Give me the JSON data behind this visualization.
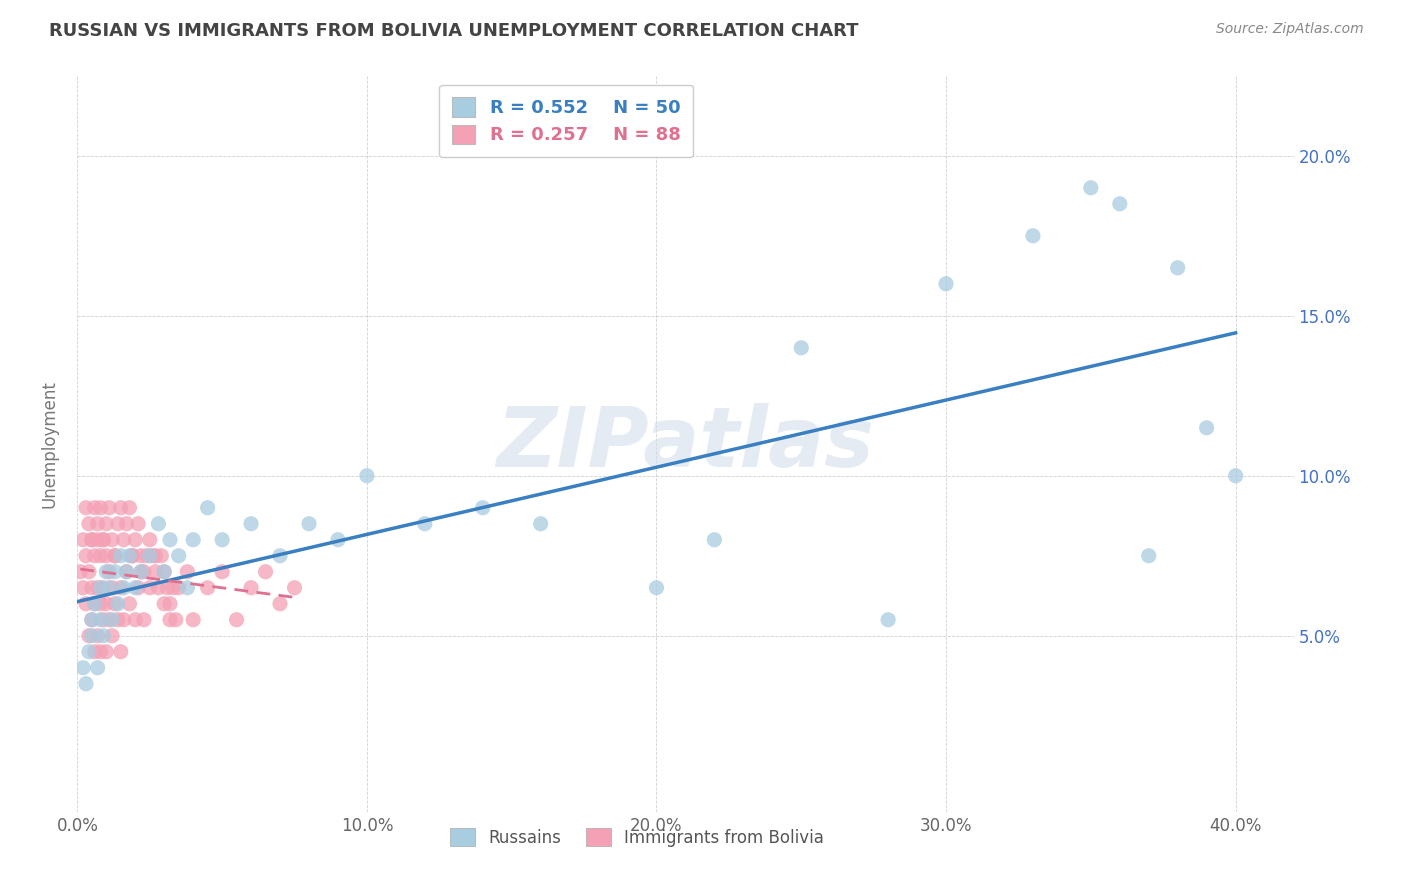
{
  "title": "RUSSIAN VS IMMIGRANTS FROM BOLIVIA UNEMPLOYMENT CORRELATION CHART",
  "source": "Source: ZipAtlas.com",
  "ylabel": "Unemployment",
  "legend_r0": "R = 0.552",
  "legend_n0": "N = 50",
  "legend_r1": "R = 0.257",
  "legend_n1": "N = 88",
  "russian_color": "#a8cce0",
  "bolivia_color": "#f4a0b5",
  "russian_line_color": "#3a7fc1",
  "bolivia_line_color": "#e07090",
  "title_color": "#444444",
  "source_color": "#888888",
  "watermark_text": "ZIPatlas",
  "xlim": [
    0.0,
    0.42
  ],
  "ylim": [
    -0.005,
    0.225
  ],
  "xtick_vals": [
    0.0,
    0.1,
    0.2,
    0.3,
    0.4
  ],
  "ytick_right_vals": [
    0.05,
    0.1,
    0.15,
    0.2
  ],
  "russians_x": [
    0.002,
    0.003,
    0.004,
    0.005,
    0.005,
    0.006,
    0.007,
    0.008,
    0.008,
    0.009,
    0.01,
    0.011,
    0.012,
    0.013,
    0.014,
    0.015,
    0.016,
    0.017,
    0.018,
    0.02,
    0.022,
    0.025,
    0.028,
    0.03,
    0.032,
    0.035,
    0.038,
    0.04,
    0.045,
    0.05,
    0.06,
    0.07,
    0.08,
    0.09,
    0.1,
    0.12,
    0.14,
    0.16,
    0.2,
    0.22,
    0.25,
    0.28,
    0.3,
    0.33,
    0.35,
    0.36,
    0.37,
    0.38,
    0.39,
    0.4
  ],
  "russians_y": [
    0.04,
    0.035,
    0.045,
    0.05,
    0.055,
    0.06,
    0.04,
    0.055,
    0.065,
    0.05,
    0.07,
    0.065,
    0.055,
    0.07,
    0.06,
    0.075,
    0.065,
    0.07,
    0.075,
    0.065,
    0.07,
    0.075,
    0.085,
    0.07,
    0.08,
    0.075,
    0.065,
    0.08,
    0.09,
    0.08,
    0.085,
    0.075,
    0.085,
    0.08,
    0.1,
    0.085,
    0.09,
    0.085,
    0.065,
    0.08,
    0.14,
    0.055,
    0.16,
    0.175,
    0.19,
    0.185,
    0.075,
    0.165,
    0.115,
    0.1
  ],
  "bolivia_x": [
    0.001,
    0.002,
    0.002,
    0.003,
    0.003,
    0.004,
    0.004,
    0.005,
    0.005,
    0.005,
    0.006,
    0.006,
    0.006,
    0.007,
    0.007,
    0.007,
    0.008,
    0.008,
    0.008,
    0.009,
    0.009,
    0.009,
    0.01,
    0.01,
    0.01,
    0.011,
    0.011,
    0.012,
    0.012,
    0.013,
    0.013,
    0.014,
    0.015,
    0.015,
    0.016,
    0.017,
    0.018,
    0.019,
    0.02,
    0.021,
    0.022,
    0.023,
    0.025,
    0.027,
    0.03,
    0.032,
    0.035,
    0.038,
    0.04,
    0.045,
    0.05,
    0.055,
    0.06,
    0.065,
    0.07,
    0.075,
    0.003,
    0.004,
    0.005,
    0.006,
    0.007,
    0.008,
    0.009,
    0.01,
    0.011,
    0.012,
    0.013,
    0.014,
    0.015,
    0.016,
    0.017,
    0.018,
    0.019,
    0.02,
    0.021,
    0.022,
    0.023,
    0.024,
    0.025,
    0.026,
    0.027,
    0.028,
    0.029,
    0.03,
    0.031,
    0.032,
    0.033,
    0.034
  ],
  "bolivia_y": [
    0.07,
    0.065,
    0.08,
    0.06,
    0.075,
    0.05,
    0.07,
    0.055,
    0.065,
    0.08,
    0.045,
    0.06,
    0.075,
    0.05,
    0.065,
    0.08,
    0.045,
    0.06,
    0.075,
    0.055,
    0.065,
    0.08,
    0.045,
    0.06,
    0.075,
    0.055,
    0.07,
    0.05,
    0.065,
    0.06,
    0.075,
    0.055,
    0.045,
    0.065,
    0.055,
    0.07,
    0.06,
    0.075,
    0.055,
    0.065,
    0.07,
    0.055,
    0.065,
    0.075,
    0.06,
    0.055,
    0.065,
    0.07,
    0.055,
    0.065,
    0.07,
    0.055,
    0.065,
    0.07,
    0.06,
    0.065,
    0.09,
    0.085,
    0.08,
    0.09,
    0.085,
    0.09,
    0.08,
    0.085,
    0.09,
    0.08,
    0.075,
    0.085,
    0.09,
    0.08,
    0.085,
    0.09,
    0.075,
    0.08,
    0.085,
    0.075,
    0.07,
    0.075,
    0.08,
    0.075,
    0.07,
    0.065,
    0.075,
    0.07,
    0.065,
    0.06,
    0.065,
    0.055
  ]
}
